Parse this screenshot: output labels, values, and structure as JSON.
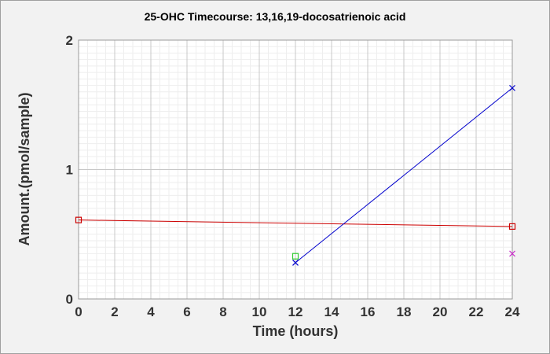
{
  "chart_data": {
    "type": "line",
    "title": "25-OHC Timecourse: 13,16,19-docosatrienoic acid",
    "xlabel": "Time (hours)",
    "ylabel": "Amount.(pmol/sample)",
    "xlim": [
      0,
      24
    ],
    "ylim": [
      0,
      2
    ],
    "x_ticks": [
      "0",
      "2",
      "4",
      "6",
      "8",
      "10",
      "12",
      "14",
      "16",
      "18",
      "20",
      "22",
      "24"
    ],
    "y_ticks": [
      "0",
      "1",
      "2"
    ],
    "grid": true,
    "legend": "none",
    "series": [
      {
        "color": "#cc0000",
        "marker": "square",
        "line": true,
        "x": [
          0,
          24
        ],
        "y": [
          0.61,
          0.56
        ]
      },
      {
        "color": "#0000cc",
        "marker": "x",
        "line": true,
        "x": [
          12,
          24
        ],
        "y": [
          0.28,
          1.63
        ]
      },
      {
        "color": "#33cc33",
        "marker": "square",
        "line": false,
        "x": [
          12
        ],
        "y": [
          0.33
        ]
      },
      {
        "color": "#cc33cc",
        "marker": "x",
        "line": false,
        "x": [
          24
        ],
        "y": [
          0.35
        ]
      }
    ]
  }
}
